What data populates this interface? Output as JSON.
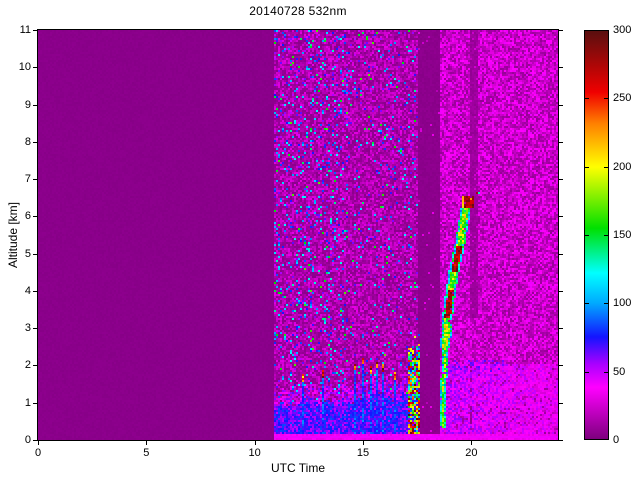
{
  "figure": {
    "background": "#ffffff",
    "axis_color": "#000000"
  },
  "chart_data": {
    "type": "heatmap",
    "title": "20140728 532nm",
    "xlabel": "UTC Time",
    "ylabel": "Altitude [km]",
    "xlim": [
      0,
      24
    ],
    "ylim": [
      0,
      11
    ],
    "xticks": [
      0,
      5,
      10,
      15,
      20
    ],
    "yticks": [
      0,
      1,
      2,
      3,
      4,
      5,
      6,
      7,
      8,
      9,
      10,
      11
    ],
    "grid": false,
    "colorbar": {
      "min": 0,
      "max": 300,
      "ticks": [
        0,
        50,
        100,
        150,
        200,
        250,
        300
      ],
      "stops": [
        [
          0,
          "#7d007d"
        ],
        [
          38,
          "#ff00ff"
        ],
        [
          55,
          "#aa00ff"
        ],
        [
          75,
          "#1414ff"
        ],
        [
          100,
          "#00aaff"
        ],
        [
          122,
          "#00ffff"
        ],
        [
          155,
          "#00e000"
        ],
        [
          200,
          "#ffff00"
        ],
        [
          232,
          "#ff8000"
        ],
        [
          255,
          "#f00000"
        ],
        [
          300,
          "#5a0f0f"
        ]
      ]
    },
    "regions": [
      {
        "name": "no-signal-morning",
        "utc": [
          0,
          10.85
        ],
        "base_value": 3,
        "speckle_prob": 0
      },
      {
        "name": "daytime-observation",
        "utc": [
          10.85,
          17.55
        ],
        "base_value": [
          4,
          31
        ],
        "blue_speckle_prob": 0.11,
        "green_speckle_prob": 0.02,
        "speckle_fade_after_utc": 14.3,
        "boundary_layer": {
          "top_km": [
            0.85,
            1.75
          ],
          "value": [
            48,
            84
          ]
        }
      },
      {
        "name": "laser-off-gap",
        "utc": [
          17.55,
          18.58
        ],
        "base_value": 3,
        "speckle_prob": 0.015
      },
      {
        "name": "evening-observation",
        "utc": [
          18.58,
          24
        ],
        "base_value": [
          7,
          42
        ],
        "magenta_speckle_prob": 0.58,
        "boundary_layer": {
          "top_km": 2.05,
          "value": [
            24,
            62
          ]
        }
      }
    ],
    "features": {
      "surface_line": {
        "utc": [
          10.87,
          24
        ],
        "alt_km": [
          0,
          0.18
        ],
        "value": 41
      },
      "aerosol_spikes": [
        {
          "utc": 12.15,
          "top_km": 1.75
        },
        {
          "utc": 13.15,
          "top_km": 1.85
        },
        {
          "utc": 14.6,
          "top_km": 2.05
        },
        {
          "utc": 14.95,
          "top_km": 2.2
        },
        {
          "utc": 15.3,
          "top_km": 1.95
        },
        {
          "utc": 15.6,
          "top_km": 2.1
        },
        {
          "utc": 15.85,
          "top_km": 2.0
        },
        {
          "utc": 16.45,
          "top_km": 1.8
        }
      ],
      "spike_body_value": [
        66,
        96
      ],
      "spike_tip_value": [
        200,
        300
      ],
      "pregap_plume": {
        "utc": [
          17.05,
          17.52
        ],
        "top_km": 2.95,
        "value_mix": [
          [
            0.35,
            60,
            140
          ],
          [
            0.7,
            140,
            230
          ],
          [
            1.0,
            230,
            300
          ]
        ]
      },
      "cloud_streak": {
        "path": [
          [
            18.63,
            0.35
          ],
          [
            18.68,
            1.5
          ],
          [
            18.76,
            2.6
          ],
          [
            18.9,
            3.6
          ],
          [
            19.15,
            4.55
          ],
          [
            19.45,
            5.35
          ],
          [
            19.72,
            6.3
          ]
        ],
        "edge_value": [
          90,
          160
        ],
        "inner_value": [
          140,
          220
        ],
        "core_value": [
          250,
          300
        ],
        "core_alt_ranges": [
          [
            3.3,
            4.05
          ],
          [
            4.55,
            5.25
          ]
        ]
      },
      "cloud_top_blob": {
        "utc": [
          19.7,
          20.0
        ],
        "alt_km": [
          6.3,
          6.55
        ],
        "value": [
          260,
          300
        ]
      },
      "attenuation_column": {
        "utc": [
          19.95,
          20.3
        ],
        "alt_km": [
          3.3,
          11
        ],
        "value": 6
      },
      "dark_streaks": [
        {
          "utc": 12.15,
          "alt_km": [
            2.2,
            6.5
          ]
        },
        {
          "utc": 13.15,
          "alt_km": [
            2.2,
            6.0
          ]
        },
        {
          "utc": 19.93,
          "alt_km": [
            0.2,
            2.0
          ]
        }
      ]
    }
  }
}
